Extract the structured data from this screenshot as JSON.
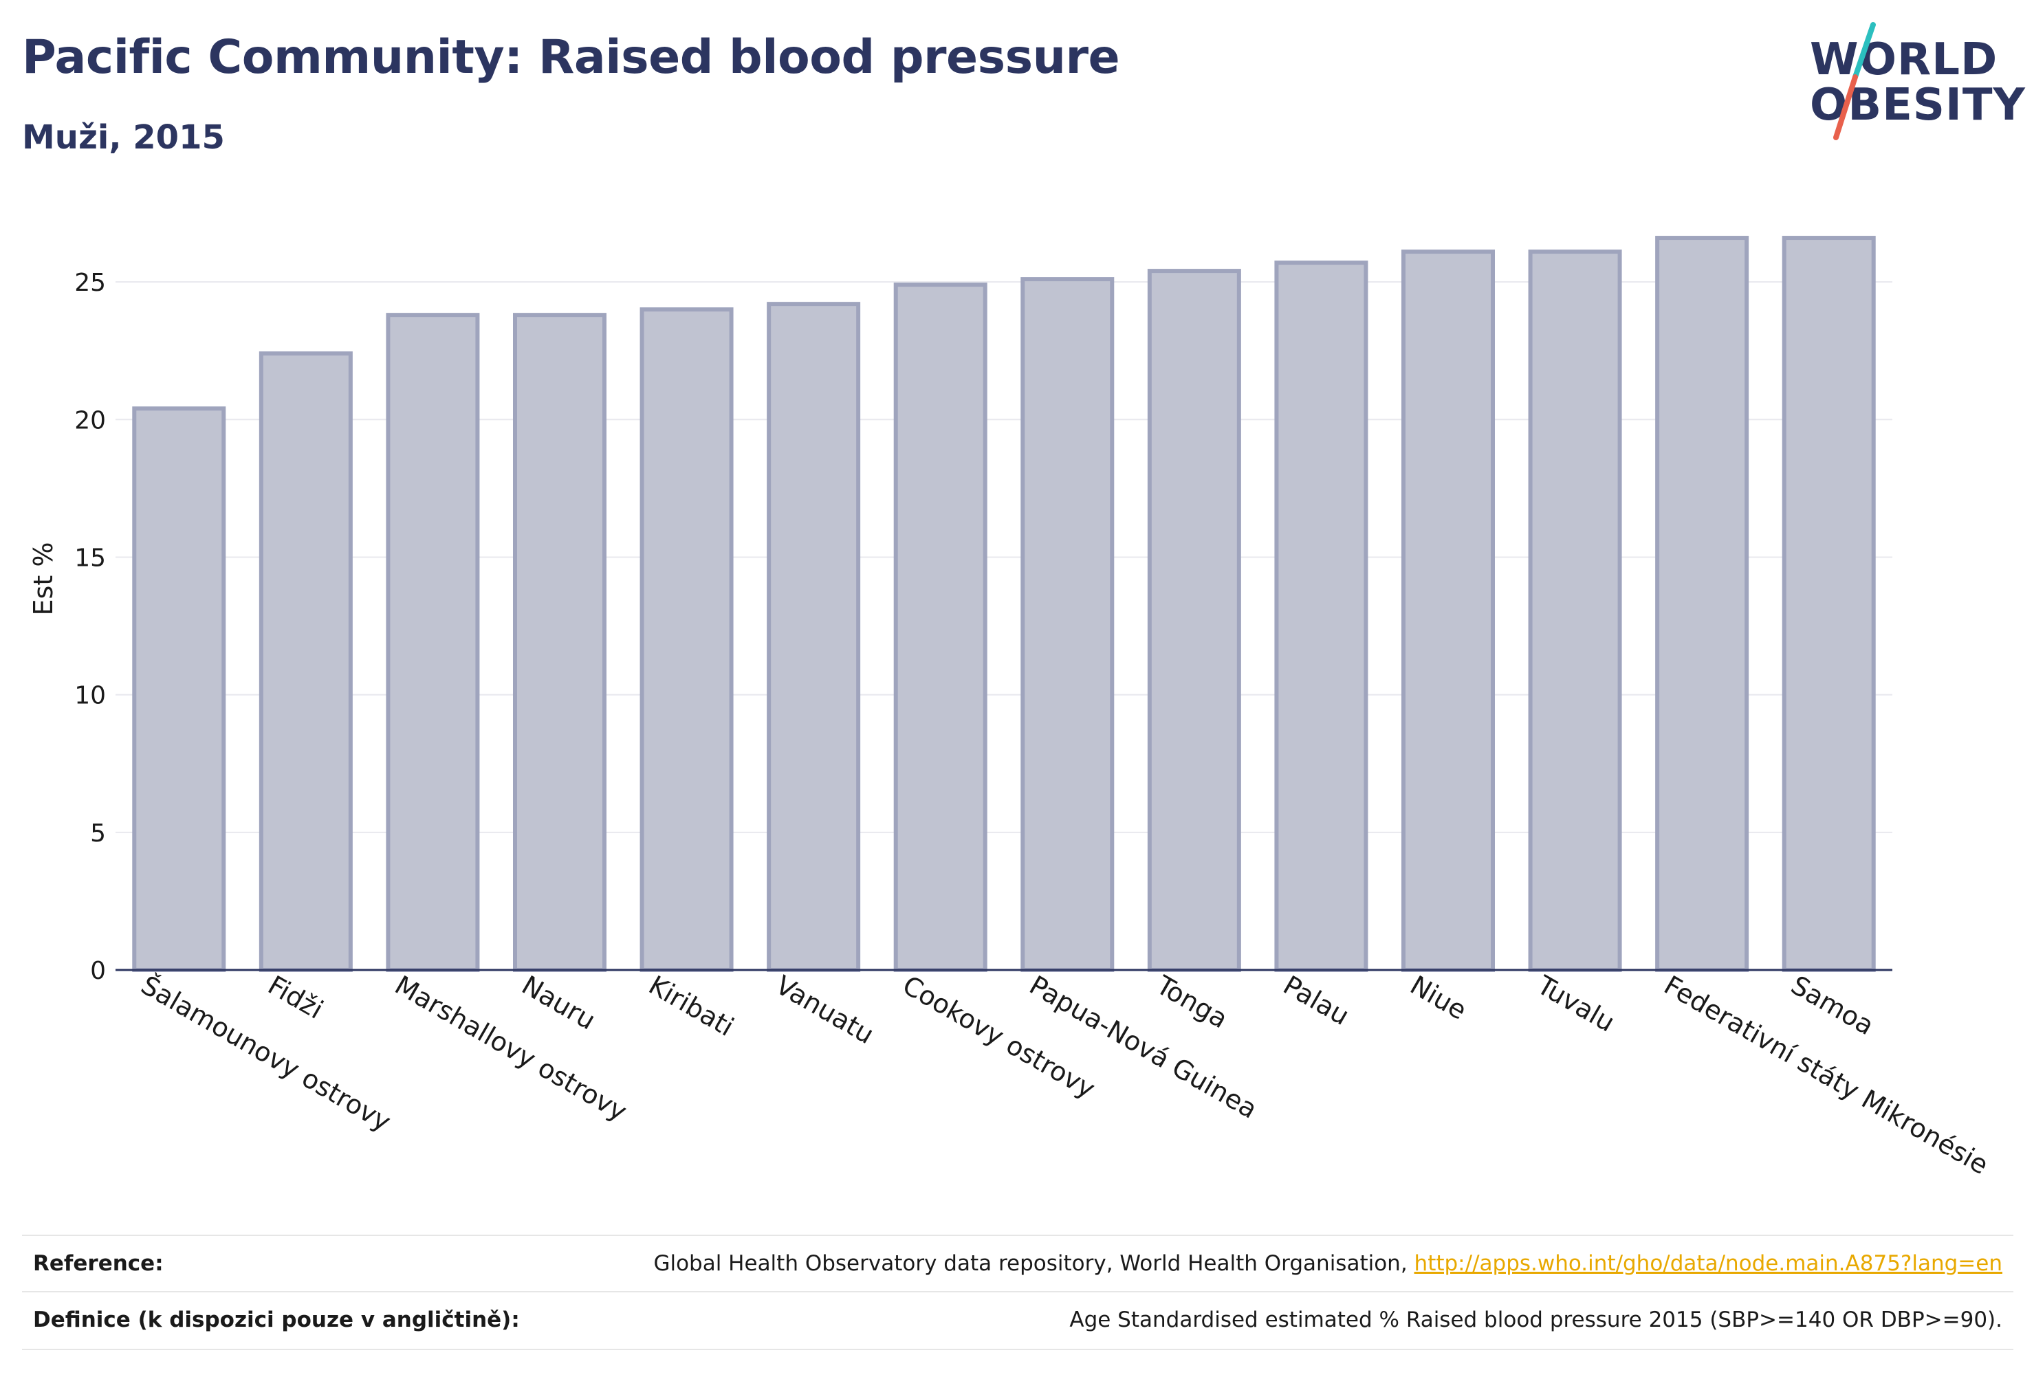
{
  "header": {
    "title": "Pacific Community: Raised blood pressure",
    "subtitle": "Muži, 2015"
  },
  "logo": {
    "line1": "WORLD",
    "line2": "OBESITY",
    "colors": {
      "text": "#2c3560",
      "slash_top": "#2bbfbf",
      "slash_bottom": "#e8604c"
    }
  },
  "colors": {
    "bar_fill": "#c0c3d1",
    "bar_stroke": "#9fa4bd",
    "grid": "#e8e8ee",
    "axis": "#2c3560",
    "title": "#2c3560",
    "link": "#e8a800"
  },
  "chart_data": {
    "type": "bar",
    "title": "Pacific Community: Raised blood pressure",
    "subtitle": "Muži, 2015",
    "xlabel": "",
    "ylabel": "Est %",
    "ylim": [
      0,
      28
    ],
    "yticks": [
      0,
      5,
      10,
      15,
      20,
      25
    ],
    "grid": true,
    "categories": [
      "Šalamounovy ostrovy",
      "Fidži",
      "Marshallovy ostrovy",
      "Nauru",
      "Kiribati",
      "Vanuatu",
      "Cookovy ostrovy",
      "Papua-Nová Guinea",
      "Tonga",
      "Palau",
      "Niue",
      "Tuvalu",
      "Federativní státy Mikronésie",
      "Samoa"
    ],
    "values": [
      20.4,
      22.4,
      23.8,
      23.8,
      24.0,
      24.2,
      24.9,
      25.1,
      25.4,
      25.7,
      26.1,
      26.1,
      26.6,
      26.6
    ]
  },
  "footer": {
    "reference_label": "Reference:",
    "reference_text": "Global Health Observatory data repository, World Health Organisation, ",
    "reference_link": "http://apps.who.int/gho/data/node.main.A875?lang=en",
    "definition_label": "Definice (k dispozici pouze v angličtině):",
    "definition_text": "Age Standardised estimated % Raised blood pressure 2015 (SBP>=140 OR DBP>=90)."
  }
}
